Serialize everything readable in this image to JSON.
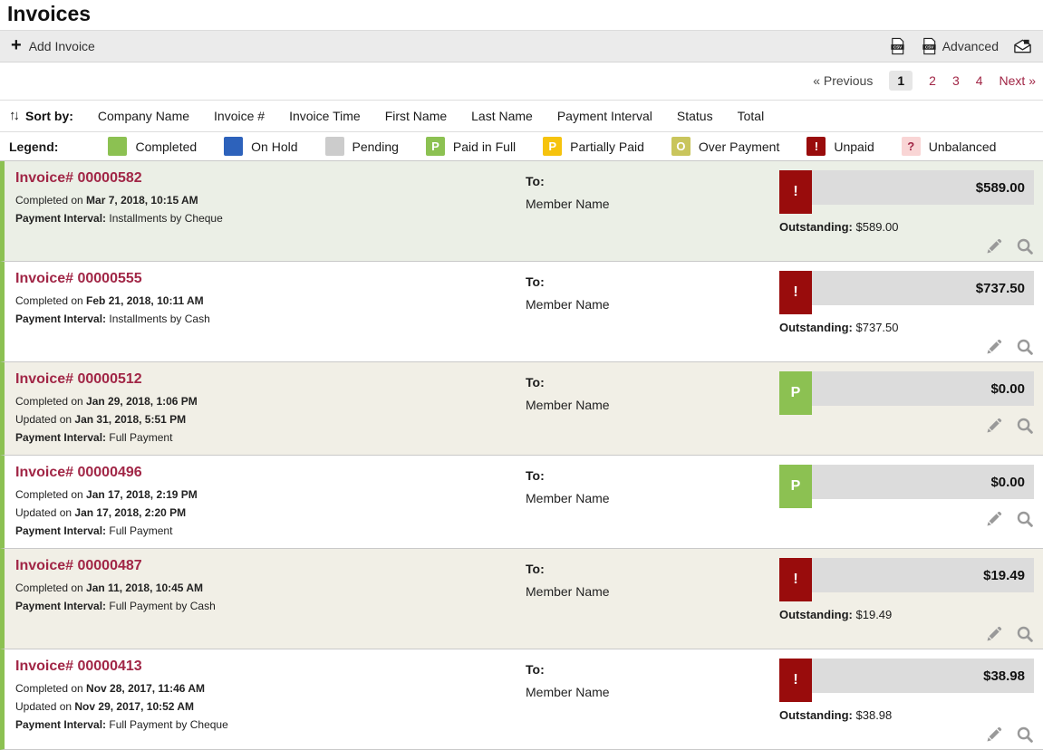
{
  "page_title": "Invoices",
  "toolbar": {
    "add_invoice_label": "Add Invoice",
    "plus_glyph": "+",
    "advanced_label": "Advanced"
  },
  "pagination": {
    "previous_label": "« Previous",
    "pages": [
      "1",
      "2",
      "3",
      "4"
    ],
    "active_page": "1",
    "next_label": "Next »"
  },
  "sort": {
    "label": "Sort by:",
    "arrows_glyph": "↑↓",
    "options": [
      "Company Name",
      "Invoice #",
      "Invoice Time",
      "First Name",
      "Last Name",
      "Payment Interval",
      "Status",
      "Total"
    ]
  },
  "legend": {
    "label": "Legend:",
    "items": [
      {
        "label": "Completed",
        "glyph": "",
        "color": "#8cc152",
        "glyph_color": "#ffffff"
      },
      {
        "label": "On Hold",
        "glyph": "",
        "color": "#2d62bb",
        "glyph_color": "#ffffff"
      },
      {
        "label": "Pending",
        "glyph": "",
        "color": "#cccccc",
        "glyph_color": "#ffffff"
      },
      {
        "label": "Paid in Full",
        "glyph": "P",
        "color": "#8cc152",
        "glyph_color": "#ffffff"
      },
      {
        "label": "Partially Paid",
        "glyph": "P",
        "color": "#f6c30d",
        "glyph_color": "#ffffff"
      },
      {
        "label": "Over Payment",
        "glyph": "O",
        "color": "#c9c55c",
        "glyph_color": "#ffffff"
      },
      {
        "label": "Unpaid",
        "glyph": "!",
        "color": "#990c0c",
        "glyph_color": "#ffffff"
      },
      {
        "label": "Unbalanced",
        "glyph": "?",
        "color": "#f9d5d5",
        "glyph_color": "#a12646"
      }
    ]
  },
  "colors": {
    "accent_maroon": "#a12646",
    "row_border_green": "#8cc152",
    "total_strip_gray": "#dcdcdc",
    "status": {
      "unpaid": "#990c0c",
      "paid": "#8cc152"
    }
  },
  "invoices": [
    {
      "invoice_label": "Invoice# 00000582",
      "completed_prefix": "Completed on",
      "completed_date": "Mar 7, 2018, 10:15 AM",
      "updated_prefix": "",
      "updated_date": "",
      "interval_label": "Payment Interval:",
      "interval_value": "Installments by Cheque",
      "to_label": "To:",
      "recipient": "Member Name",
      "status": "unpaid",
      "status_glyph": "!",
      "total": "$589.00",
      "outstanding_label": "Outstanding:",
      "outstanding_value": "$589.00",
      "shade": "green"
    },
    {
      "invoice_label": "Invoice# 00000555",
      "completed_prefix": "Completed on",
      "completed_date": "Feb 21, 2018, 10:11 AM",
      "updated_prefix": "",
      "updated_date": "",
      "interval_label": "Payment Interval:",
      "interval_value": "Installments by Cash",
      "to_label": "To:",
      "recipient": "Member Name",
      "status": "unpaid",
      "status_glyph": "!",
      "total": "$737.50",
      "outstanding_label": "Outstanding:",
      "outstanding_value": "$737.50",
      "shade": "white"
    },
    {
      "invoice_label": "Invoice# 00000512",
      "completed_prefix": "Completed on",
      "completed_date": "Jan 29, 2018, 1:06 PM",
      "updated_prefix": "Updated on",
      "updated_date": "Jan 31, 2018, 5:51 PM",
      "interval_label": "Payment Interval:",
      "interval_value": "Full Payment",
      "to_label": "To:",
      "recipient": "Member Name",
      "status": "paid",
      "status_glyph": "P",
      "total": "$0.00",
      "outstanding_label": "",
      "outstanding_value": "",
      "shade": "beige"
    },
    {
      "invoice_label": "Invoice# 00000496",
      "completed_prefix": "Completed on",
      "completed_date": "Jan 17, 2018, 2:19 PM",
      "updated_prefix": "Updated on",
      "updated_date": "Jan 17, 2018, 2:20 PM",
      "interval_label": "Payment Interval:",
      "interval_value": "Full Payment",
      "to_label": "To:",
      "recipient": "Member Name",
      "status": "paid",
      "status_glyph": "P",
      "total": "$0.00",
      "outstanding_label": "",
      "outstanding_value": "",
      "shade": "white"
    },
    {
      "invoice_label": "Invoice# 00000487",
      "completed_prefix": "Completed on",
      "completed_date": "Jan 11, 2018, 10:45 AM",
      "updated_prefix": "",
      "updated_date": "",
      "interval_label": "Payment Interval:",
      "interval_value": "Full Payment by Cash",
      "to_label": "To:",
      "recipient": "Member Name",
      "status": "unpaid",
      "status_glyph": "!",
      "total": "$19.49",
      "outstanding_label": "Outstanding:",
      "outstanding_value": "$19.49",
      "shade": "beige"
    },
    {
      "invoice_label": "Invoice# 00000413",
      "completed_prefix": "Completed on",
      "completed_date": "Nov 28, 2017, 11:46 AM",
      "updated_prefix": "Updated on",
      "updated_date": "Nov 29, 2017, 10:52 AM",
      "interval_label": "Payment Interval:",
      "interval_value": "Full Payment by Cheque",
      "to_label": "To:",
      "recipient": "Member Name",
      "status": "unpaid",
      "status_glyph": "!",
      "total": "$38.98",
      "outstanding_label": "Outstanding:",
      "outstanding_value": "$38.98",
      "shade": "white"
    }
  ]
}
